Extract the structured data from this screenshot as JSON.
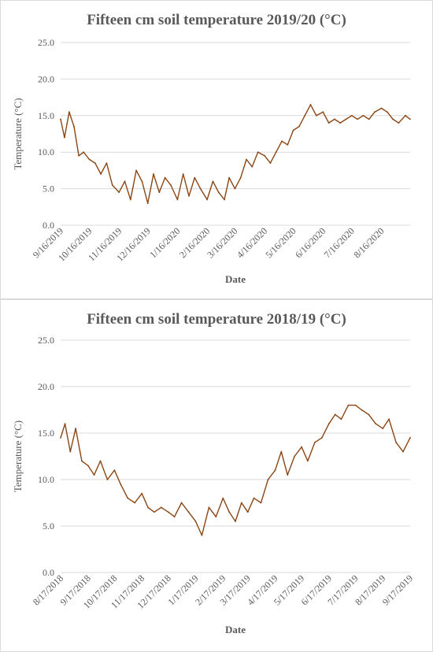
{
  "chart_data": [
    {
      "type": "line",
      "title": "Fifteen cm soil temperature 2019/20  (°C)",
      "xlabel": "Date",
      "ylabel": "Temperature (°C)",
      "ylim": [
        0,
        25
      ],
      "yticks": [
        "0.0",
        "5.0",
        "10.0",
        "15.0",
        "20.0",
        "25.0"
      ],
      "categories": [
        "9/16/2019",
        "10/16/2019",
        "11/16/2019",
        "12/16/2019",
        "1/16/2020",
        "2/16/2020",
        "3/16/2020",
        "4/16/2020",
        "5/16/2020",
        "6/16/2020",
        "7/16/2020",
        "8/16/2020"
      ],
      "grid": true,
      "legend": "none",
      "color": "#8B4513",
      "series": [
        {
          "x": [
            "9/16/2019",
            "9/20/2019",
            "9/25/2019",
            "9/30/2019",
            "10/5/2019",
            "10/10/2019",
            "10/16/2019",
            "10/22/2019",
            "10/28/2019",
            "11/3/2019",
            "11/9/2019",
            "11/16/2019",
            "11/22/2019",
            "11/28/2019",
            "12/4/2019",
            "12/10/2019",
            "12/16/2019",
            "12/22/2019",
            "12/28/2019",
            "1/3/2020",
            "1/9/2020",
            "1/16/2020",
            "1/22/2020",
            "1/28/2020",
            "2/3/2020",
            "2/9/2020",
            "2/16/2020",
            "2/22/2020",
            "2/28/2020",
            "3/5/2020",
            "3/10/2020",
            "3/16/2020",
            "3/22/2020",
            "3/28/2020",
            "4/3/2020",
            "4/9/2020",
            "4/16/2020",
            "4/22/2020",
            "4/28/2020",
            "5/4/2020",
            "5/10/2020",
            "5/16/2020",
            "5/22/2020",
            "5/28/2020",
            "6/3/2020",
            "6/9/2020",
            "6/16/2020",
            "6/22/2020",
            "6/28/2020",
            "7/4/2020",
            "7/10/2020",
            "7/16/2020",
            "7/22/2020",
            "7/28/2020",
            "8/3/2020",
            "8/9/2020",
            "8/16/2020",
            "8/22/2020",
            "8/28/2020",
            "9/3/2020",
            "9/10/2020",
            "9/15/2020"
          ],
          "values": [
            14.5,
            12.0,
            15.5,
            13.5,
            9.5,
            10.0,
            9.0,
            8.5,
            7.0,
            8.5,
            5.5,
            4.5,
            6.0,
            3.5,
            7.5,
            6.0,
            3.0,
            7.0,
            4.5,
            6.5,
            5.5,
            3.5,
            7.0,
            4.0,
            6.5,
            5.0,
            3.5,
            6.0,
            4.5,
            3.5,
            6.5,
            5.0,
            6.5,
            9.0,
            8.0,
            10.0,
            9.5,
            8.5,
            10.0,
            11.5,
            11.0,
            13.0,
            13.5,
            15.0,
            16.5,
            15.0,
            15.5,
            14.0,
            14.5,
            14.0,
            14.5,
            15.0,
            14.5,
            15.0,
            14.5,
            15.5,
            16.0,
            15.5,
            14.5,
            14.0,
            15.0,
            14.5
          ]
        }
      ]
    },
    {
      "type": "line",
      "title": "Fifteen cm soil temperature 2018/19 (°C)",
      "xlabel": "Date",
      "ylabel": "Temperature (°C)",
      "ylim": [
        0,
        25
      ],
      "yticks": [
        "0.0",
        "5.0",
        "10.0",
        "15.0",
        "20.0",
        "25.0"
      ],
      "categories": [
        "8/17/2018",
        "9/17/2018",
        "10/17/2018",
        "11/17/2018",
        "12/17/2018",
        "1/17/2019",
        "2/17/2019",
        "3/17/2019",
        "4/17/2019",
        "5/17/2019",
        "6/17/2019",
        "7/17/2019",
        "8/17/2019",
        "9/17/2019"
      ],
      "grid": true,
      "legend": "none",
      "color": "#8B4513",
      "series": [
        {
          "x": [
            "8/17/2018",
            "8/22/2018",
            "8/28/2018",
            "9/3/2018",
            "9/10/2018",
            "9/17/2018",
            "9/24/2018",
            "10/1/2018",
            "10/9/2018",
            "10/17/2018",
            "10/24/2018",
            "11/1/2018",
            "11/9/2018",
            "11/17/2018",
            "11/24/2018",
            "12/1/2018",
            "12/9/2018",
            "12/17/2018",
            "12/24/2018",
            "1/1/2019",
            "1/9/2019",
            "1/17/2019",
            "1/24/2019",
            "2/1/2019",
            "2/9/2019",
            "2/17/2019",
            "2/24/2019",
            "3/3/2019",
            "3/10/2019",
            "3/17/2019",
            "3/24/2019",
            "4/1/2019",
            "4/9/2019",
            "4/17/2019",
            "4/24/2019",
            "5/1/2019",
            "5/9/2019",
            "5/17/2019",
            "5/24/2019",
            "6/1/2019",
            "6/9/2019",
            "6/17/2019",
            "6/24/2019",
            "7/1/2019",
            "7/9/2019",
            "7/17/2019",
            "7/24/2019",
            "8/1/2019",
            "8/9/2019",
            "8/17/2019",
            "8/24/2019",
            "9/1/2019",
            "9/9/2019",
            "9/17/2019"
          ],
          "values": [
            14.5,
            16.0,
            13.0,
            15.5,
            12.0,
            11.5,
            10.5,
            12.0,
            10.0,
            11.0,
            9.5,
            8.0,
            7.5,
            8.5,
            7.0,
            6.5,
            7.0,
            6.5,
            6.0,
            7.5,
            6.5,
            5.5,
            4.0,
            7.0,
            6.0,
            8.0,
            6.5,
            5.5,
            7.5,
            6.5,
            8.0,
            7.5,
            10.0,
            11.0,
            13.0,
            10.5,
            12.5,
            13.5,
            12.0,
            14.0,
            14.5,
            16.0,
            17.0,
            16.5,
            18.0,
            18.0,
            17.5,
            17.0,
            16.0,
            15.5,
            16.5,
            14.0,
            13.0,
            14.5
          ]
        }
      ]
    }
  ]
}
